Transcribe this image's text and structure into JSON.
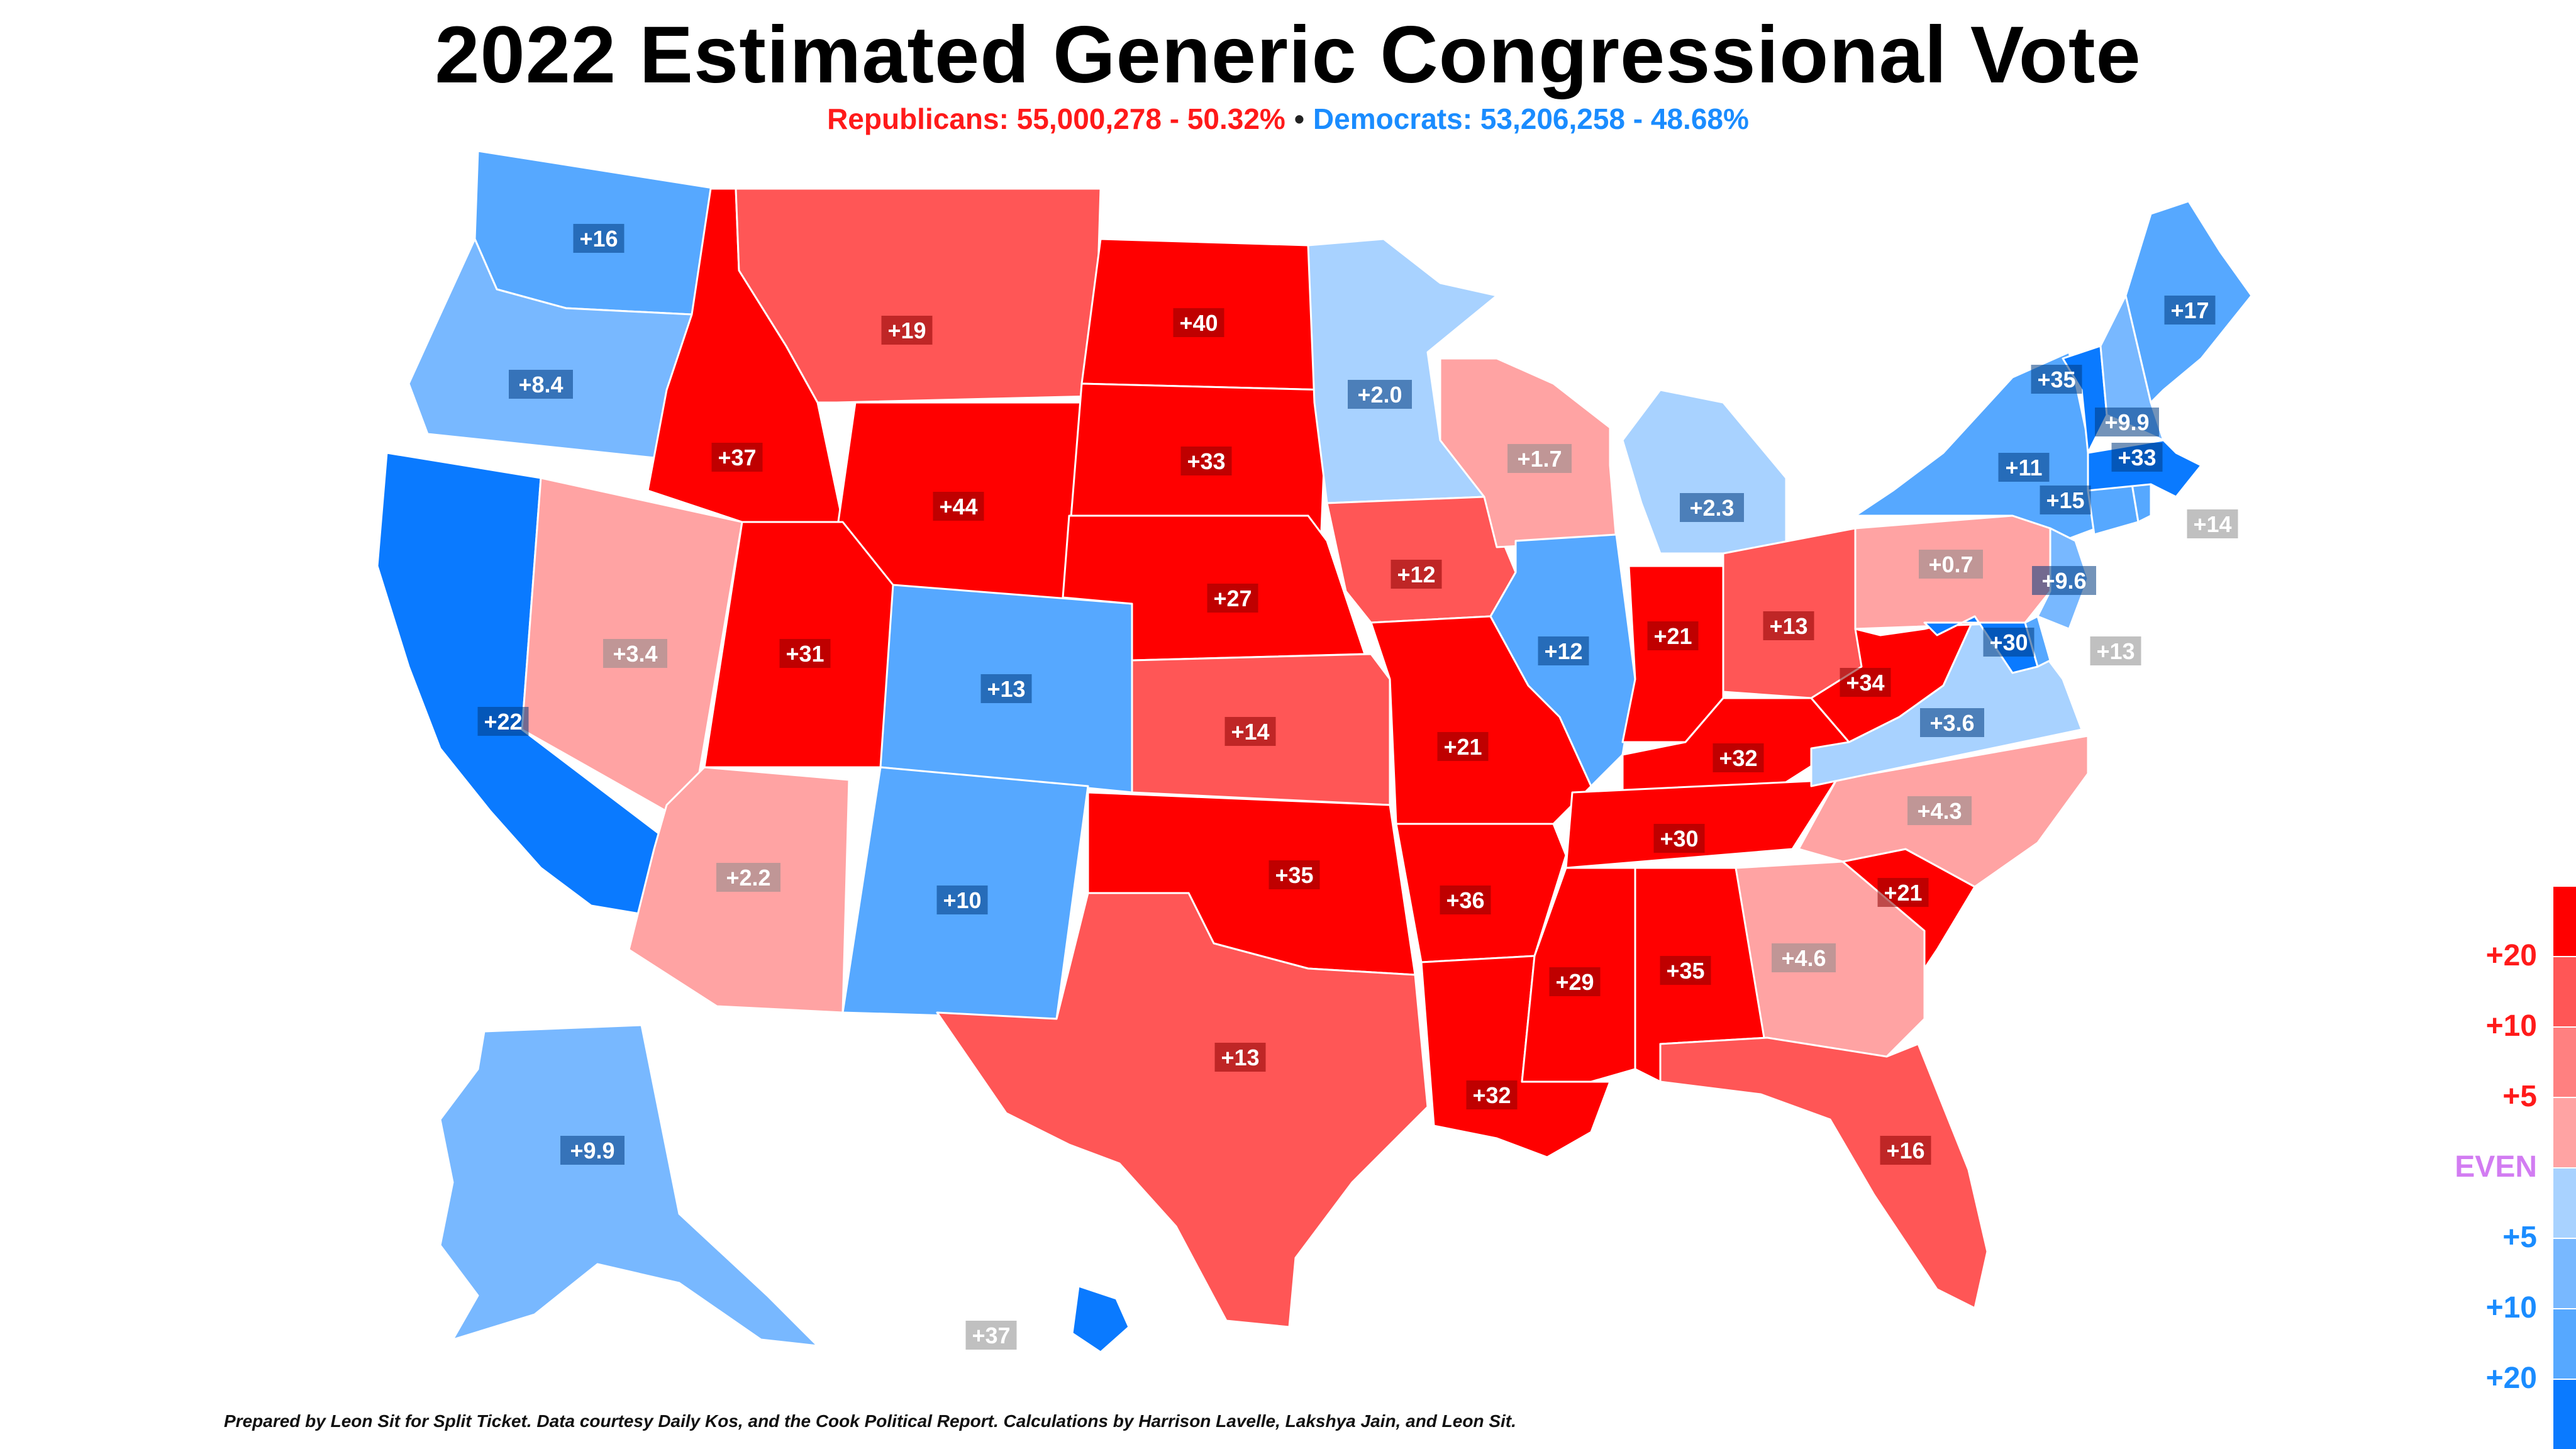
{
  "title": "2022 Estimated Generic Congressional Vote",
  "subtitle": {
    "republicans": "Republicans: 55,000,278 - 50.32%",
    "separator": "•",
    "democrats": "Democrats: 53,206,258 - 48.68%"
  },
  "colors": {
    "R20": "#ff0000",
    "R10": "#ff5656",
    "R5": "#ff8080",
    "R0": "#ffa3a3",
    "D0": "#a8d2ff",
    "D5": "#78b8ff",
    "D10": "#56a8ff",
    "D20": "#0a7aff",
    "rep_text": "#ff1a1a",
    "dem_text": "#1a8cff",
    "even_text": "#d27cf2",
    "label_dark_red": "#8a0000",
    "label_dark_blue": "#003a80",
    "label_grey": "#8c8c8c"
  },
  "legend": {
    "labels": [
      "+20",
      "+10",
      "+5",
      "EVEN",
      "+5",
      "+10",
      "+20"
    ]
  },
  "states": [
    {
      "id": "WA",
      "margin": "+16",
      "party": "D",
      "tier": "D10"
    },
    {
      "id": "OR",
      "margin": "+8.4",
      "party": "D",
      "tier": "D5"
    },
    {
      "id": "CA",
      "margin": "+22",
      "party": "D",
      "tier": "D20"
    },
    {
      "id": "NV",
      "margin": "+3.4",
      "party": "R",
      "tier": "R0"
    },
    {
      "id": "ID",
      "margin": "+37",
      "party": "R",
      "tier": "R20"
    },
    {
      "id": "MT",
      "margin": "+19",
      "party": "R",
      "tier": "R10"
    },
    {
      "id": "WY",
      "margin": "+44",
      "party": "R",
      "tier": "R20"
    },
    {
      "id": "UT",
      "margin": "+31",
      "party": "R",
      "tier": "R20"
    },
    {
      "id": "AZ",
      "margin": "+2.2",
      "party": "R",
      "tier": "R0"
    },
    {
      "id": "CO",
      "margin": "+13",
      "party": "D",
      "tier": "D10"
    },
    {
      "id": "NM",
      "margin": "+10",
      "party": "D",
      "tier": "D10"
    },
    {
      "id": "ND",
      "margin": "+40",
      "party": "R",
      "tier": "R20"
    },
    {
      "id": "SD",
      "margin": "+33",
      "party": "R",
      "tier": "R20"
    },
    {
      "id": "NE",
      "margin": "+27",
      "party": "R",
      "tier": "R20"
    },
    {
      "id": "KS",
      "margin": "+14",
      "party": "R",
      "tier": "R10"
    },
    {
      "id": "OK",
      "margin": "+35",
      "party": "R",
      "tier": "R20"
    },
    {
      "id": "TX",
      "margin": "+13",
      "party": "R",
      "tier": "R10"
    },
    {
      "id": "MN",
      "margin": "+2.0",
      "party": "D",
      "tier": "D0"
    },
    {
      "id": "IA",
      "margin": "+12",
      "party": "R",
      "tier": "R10"
    },
    {
      "id": "MO",
      "margin": "+21",
      "party": "R",
      "tier": "R20"
    },
    {
      "id": "AR",
      "margin": "+36",
      "party": "R",
      "tier": "R20"
    },
    {
      "id": "LA",
      "margin": "+32",
      "party": "R",
      "tier": "R20"
    },
    {
      "id": "WI",
      "margin": "+1.7",
      "party": "R",
      "tier": "R0"
    },
    {
      "id": "IL",
      "margin": "+12",
      "party": "D",
      "tier": "D10"
    },
    {
      "id": "MI",
      "margin": "+2.3",
      "party": "D",
      "tier": "D0"
    },
    {
      "id": "IN",
      "margin": "+21",
      "party": "R",
      "tier": "R20"
    },
    {
      "id": "OH",
      "margin": "+13",
      "party": "R",
      "tier": "R10"
    },
    {
      "id": "KY",
      "margin": "+32",
      "party": "R",
      "tier": "R20"
    },
    {
      "id": "TN",
      "margin": "+30",
      "party": "R",
      "tier": "R20"
    },
    {
      "id": "MS",
      "margin": "+29",
      "party": "R",
      "tier": "R20"
    },
    {
      "id": "AL",
      "margin": "+35",
      "party": "R",
      "tier": "R20"
    },
    {
      "id": "GA",
      "margin": "+4.6",
      "party": "R",
      "tier": "R0"
    },
    {
      "id": "FL",
      "margin": "+16",
      "party": "R",
      "tier": "R10"
    },
    {
      "id": "SC",
      "margin": "+21",
      "party": "R",
      "tier": "R20"
    },
    {
      "id": "NC",
      "margin": "+4.3",
      "party": "R",
      "tier": "R0"
    },
    {
      "id": "VA",
      "margin": "+3.6",
      "party": "D",
      "tier": "D0"
    },
    {
      "id": "WV",
      "margin": "+34",
      "party": "R",
      "tier": "R20"
    },
    {
      "id": "PA",
      "margin": "+0.7",
      "party": "R",
      "tier": "R0"
    },
    {
      "id": "NY",
      "margin": "+11",
      "party": "D",
      "tier": "D10"
    },
    {
      "id": "NJ",
      "margin": "+9.6",
      "party": "D",
      "tier": "D5"
    },
    {
      "id": "MD",
      "margin": "+30",
      "party": "D",
      "tier": "D20"
    },
    {
      "id": "DE",
      "margin": "+13",
      "party": "D",
      "tier": "D10"
    },
    {
      "id": "CT",
      "margin": "+15",
      "party": "D",
      "tier": "D10"
    },
    {
      "id": "RI",
      "margin": "+14",
      "party": "D",
      "tier": "D10"
    },
    {
      "id": "MA",
      "margin": "+33",
      "party": "D",
      "tier": "D20"
    },
    {
      "id": "VT",
      "margin": "+35",
      "party": "D",
      "tier": "D20"
    },
    {
      "id": "NH",
      "margin": "+9.9",
      "party": "D",
      "tier": "D5"
    },
    {
      "id": "ME",
      "margin": "+17",
      "party": "D",
      "tier": "D10"
    },
    {
      "id": "AK",
      "margin": "+9.9",
      "party": "D",
      "tier": "D5"
    },
    {
      "id": "HI",
      "margin": "+37",
      "party": "D",
      "tier": "D20"
    }
  ],
  "credit": "Prepared by Leon Sit for Split Ticket. Data courtesy Daily Kos, and the Cook Political Report. Calculations by Harrison Lavelle, Lakshya Jain, and Leon Sit."
}
